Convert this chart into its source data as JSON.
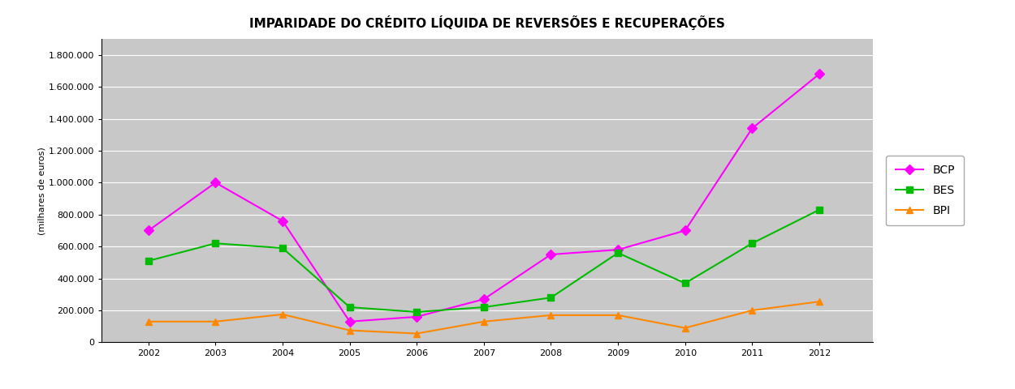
{
  "title": "IMPARIDADE DO CRÉDITO LÍQUIDA DE REVERSÕES E RECUPERAÇÕES",
  "years": [
    2002,
    2003,
    2004,
    2005,
    2006,
    2007,
    2008,
    2009,
    2010,
    2011,
    2012
  ],
  "BCP": [
    700000,
    1000000,
    760000,
    130000,
    160000,
    270000,
    550000,
    580000,
    700000,
    1340000,
    1680000
  ],
  "BES": [
    510000,
    620000,
    590000,
    220000,
    190000,
    220000,
    280000,
    560000,
    370000,
    620000,
    830000
  ],
  "BPI": [
    130000,
    130000,
    175000,
    75000,
    55000,
    130000,
    170000,
    170000,
    90000,
    200000,
    255000
  ],
  "BCP_color": "#ff00ff",
  "BES_color": "#00bb00",
  "BPI_color": "#ff8800",
  "ylabel": "(milhares de euros)",
  "ylim": [
    0,
    1900000
  ],
  "yticks": [
    0,
    200000,
    400000,
    600000,
    800000,
    1000000,
    1200000,
    1400000,
    1600000,
    1800000
  ],
  "ytick_labels": [
    "0",
    "200.000",
    "400.000",
    "600.000",
    "800.000",
    "1.000.000",
    "1.200.000",
    "1.400.000",
    "1.600.000",
    "1.800.000"
  ],
  "fig_bg_color": "#ffffff",
  "plot_bg_color": "#c8c8c8",
  "marker_BCP": "D",
  "marker_BES": "s",
  "marker_BPI": "^",
  "linewidth": 1.5,
  "markersize": 6,
  "title_fontsize": 11,
  "tick_fontsize": 8,
  "ylabel_fontsize": 8
}
